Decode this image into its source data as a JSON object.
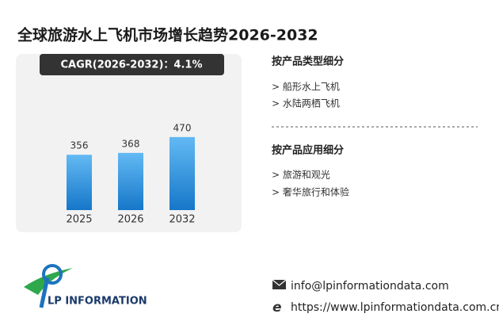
{
  "chart_data": {
    "type": "bar",
    "title": "全球旅游水上飞机市场增长趋势2026-2032",
    "cagr": "CAGR(2026-2032)：4.1%",
    "categories": [
      "2025",
      "2026",
      "2032"
    ],
    "values": [
      356,
      368,
      470
    ],
    "color": "#2f95e0"
  },
  "segments": [
    {
      "heading": "按产品类型细分",
      "items": [
        "> 船形水上飞机",
        "> 水陆两栖飞机"
      ]
    },
    {
      "heading": "按产品应用细分",
      "items": [
        "> 旅游和观光",
        "> 奢华旅行和体验"
      ]
    }
  ],
  "footer": {
    "logo": "LP INFORMATION",
    "email": "info@lpinformationdata.com",
    "website": "https://www.lpinformationdata.com.cn"
  }
}
